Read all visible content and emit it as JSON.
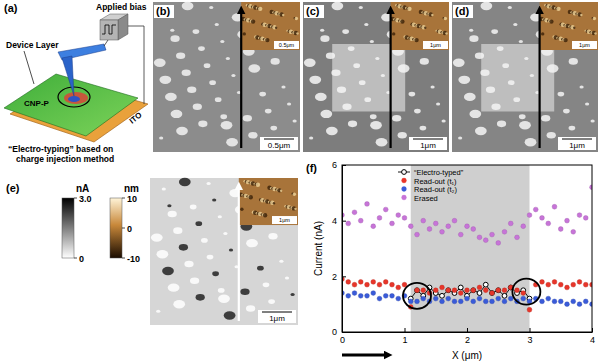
{
  "chart_data": {
    "type": "scatter",
    "x_label": "X (μm)",
    "y_label": "Current (nA)",
    "x": [
      0,
      0.1,
      0.2,
      0.3,
      0.4,
      0.5,
      0.6,
      0.7,
      0.8,
      0.9,
      1.0,
      1.1,
      1.2,
      1.3,
      1.4,
      1.5,
      1.6,
      1.7,
      1.8,
      1.9,
      2.0,
      2.1,
      2.2,
      2.3,
      2.4,
      2.5,
      2.6,
      2.7,
      2.8,
      2.9,
      3.0,
      3.1,
      3.2,
      3.3,
      3.4,
      3.5,
      3.6,
      3.7,
      3.8,
      3.9,
      4.0
    ],
    "series": [
      {
        "name": "“Electro-typed”",
        "color": "#000000",
        "marker": "circle-open",
        "line_style": "solid",
        "values": [
          null,
          null,
          null,
          null,
          null,
          null,
          null,
          null,
          null,
          null,
          null,
          1.2,
          1.5,
          1.3,
          1.6,
          1.4,
          1.3,
          1.5,
          1.4,
          1.6,
          1.3,
          1.5,
          1.4,
          1.7,
          1.4,
          1.5,
          1.3,
          1.6,
          1.4,
          1.5,
          1.2,
          null,
          null,
          null,
          null,
          null,
          null,
          null,
          null,
          null,
          null
        ]
      },
      {
        "name": "Read-out (t₁)",
        "color": "#e8352a",
        "marker": "circle",
        "line_style": "none",
        "values": [
          1.9,
          1.8,
          1.7,
          1.8,
          1.7,
          1.8,
          1.7,
          1.8,
          1.7,
          1.6,
          1.7,
          0.9,
          1.5,
          1.5,
          1.4,
          1.5,
          1.6,
          1.5,
          1.5,
          1.4,
          1.5,
          1.5,
          1.6,
          1.5,
          1.4,
          1.5,
          1.5,
          1.6,
          1.5,
          1.4,
          0.8,
          1.7,
          1.8,
          1.7,
          1.8,
          1.7,
          1.6,
          1.7,
          1.8,
          1.7,
          1.7
        ]
      },
      {
        "name": "Read-out (t₂)",
        "color": "#3a5bd9",
        "marker": "circle",
        "line_style": "none",
        "values": [
          1.4,
          1.3,
          1.4,
          1.3,
          1.3,
          1.4,
          1.2,
          1.3,
          1.3,
          1.2,
          1.3,
          1.1,
          1.1,
          1.2,
          1.1,
          1.2,
          1.1,
          1.2,
          1.1,
          1.1,
          1.2,
          1.1,
          1.2,
          1.1,
          1.1,
          1.2,
          1.1,
          1.2,
          1.1,
          1.2,
          1.1,
          1.2,
          1.1,
          1.2,
          1.1,
          1.1,
          1.0,
          1.1,
          1.0,
          1.1,
          1.0
        ]
      },
      {
        "name": "Erased",
        "color": "#c774d8",
        "marker": "circle",
        "line_style": "none",
        "values": [
          4.2,
          3.9,
          4.3,
          4.0,
          4.6,
          3.8,
          4.1,
          4.4,
          3.9,
          4.2,
          4.1,
          3.8,
          3.5,
          4.0,
          3.7,
          3.9,
          3.6,
          3.8,
          4.0,
          3.5,
          3.8,
          3.7,
          3.4,
          3.3,
          3.5,
          3.2,
          3.6,
          3.9,
          3.4,
          3.8,
          4.2,
          4.4,
          4.1,
          3.9,
          4.5,
          3.7,
          4.0,
          3.6,
          4.2,
          4.1,
          5.2
        ]
      }
    ],
    "xlim": [
      0,
      4
    ],
    "xticks": [
      0,
      1,
      2,
      3,
      4
    ],
    "ylim": [
      0,
      6
    ],
    "yticks": [
      0,
      2,
      4,
      6
    ],
    "shaded_x": [
      1.1,
      3.0
    ],
    "circled": [
      {
        "x": 1.2,
        "y": 1.3
      },
      {
        "x": 2.95,
        "y": 1.45
      }
    ],
    "legend": "top",
    "grid": false
  },
  "panels": {
    "labels": [
      "(a)",
      "(b)",
      "(c)",
      "(d)",
      "(e)",
      "(f)"
    ]
  },
  "schematic": {
    "applied_bias": "Applied bias",
    "device_layer": "Device Layer",
    "polymer": "CNP-P",
    "electrode": "ITO",
    "caption": [
      "“Electro-typing” based on",
      "charge injection method"
    ]
  },
  "images": [
    {
      "scale_bar": "0.5μm",
      "inset_scale_bar": "0.5μm"
    },
    {
      "scale_bar": "1μm",
      "inset_scale_bar": "1μm"
    },
    {
      "scale_bar": "1μm",
      "inset_scale_bar": "1μm"
    },
    {
      "scale_bar": "1μm",
      "inset_scale_bar": "1μm"
    }
  ],
  "colorbars": [
    {
      "unit": "nA",
      "range": [
        0,
        3
      ],
      "ticks": [
        {
          "value": 3,
          "label": "3.0"
        },
        0
      ]
    },
    {
      "unit": "nm",
      "range": [
        -10,
        10
      ],
      "ticks": [
        10,
        0,
        -10
      ]
    }
  ]
}
